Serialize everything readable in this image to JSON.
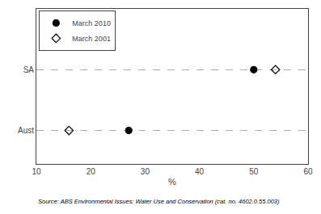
{
  "chart_data": {
    "type": "scatter",
    "orientation": "horizontal",
    "categories": [
      "SA",
      "Aust"
    ],
    "series": [
      {
        "name": "March 2010",
        "color": "black",
        "marker": "circle",
        "values": [
          50,
          27
        ]
      },
      {
        "name": "March 2001",
        "color": "black",
        "marker": "diamond-open",
        "values": [
          54,
          16
        ]
      }
    ],
    "xlabel": "%",
    "xlim": [
      10,
      60
    ],
    "xticks": [
      10,
      20,
      30,
      40,
      50,
      60
    ],
    "grid": "y",
    "legend": "upper left",
    "annotations": [
      "Source: ABS Environmental Issues: Water Use and Conservation (cat. no. 4602.0.55.003)"
    ]
  }
}
